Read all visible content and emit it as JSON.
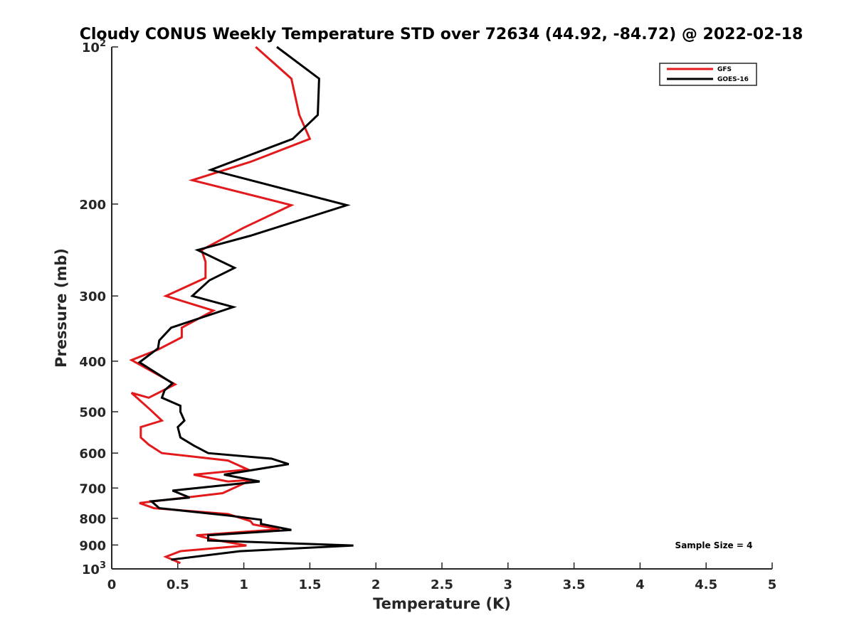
{
  "chart_data": {
    "type": "line",
    "title": "Cloudy CONUS Weekly Temperature STD over 72634 (44.92, -84.72) @ 2022-02-18",
    "xlabel": "Temperature (K)",
    "ylabel": "Pressure (mb)",
    "xlim": [
      0,
      5
    ],
    "ylim": [
      100,
      1000
    ],
    "y_scale": "log",
    "y_reversed": true,
    "grid": false,
    "legend_position": "top-right",
    "x_ticks": [
      0,
      0.5,
      1,
      1.5,
      2,
      2.5,
      3,
      3.5,
      4,
      4.5,
      5
    ],
    "x_tick_labels": [
      "0",
      "0.5",
      "1",
      "1.5",
      "2",
      "2.5",
      "3",
      "3.5",
      "4",
      "4.5",
      "5"
    ],
    "y_ticks": [
      100,
      200,
      300,
      400,
      500,
      600,
      700,
      800,
      900,
      1000
    ],
    "y_tick_labels": [
      {
        "base": "10",
        "exp": "2"
      },
      {
        "base": "200",
        "exp": ""
      },
      {
        "base": "300",
        "exp": ""
      },
      {
        "base": "400",
        "exp": ""
      },
      {
        "base": "500",
        "exp": ""
      },
      {
        "base": "600",
        "exp": ""
      },
      {
        "base": "700",
        "exp": ""
      },
      {
        "base": "800",
        "exp": ""
      },
      {
        "base": "900",
        "exp": ""
      },
      {
        "base": "10",
        "exp": "3"
      }
    ],
    "annotation": "Sample Size = 4",
    "series": [
      {
        "name": "GFS",
        "color": "#e31a1c",
        "points": [
          [
            1.09,
            100
          ],
          [
            1.36,
            115
          ],
          [
            1.42,
            135
          ],
          [
            1.5,
            150
          ],
          [
            1.05,
            166
          ],
          [
            0.61,
            180
          ],
          [
            1.36,
            201
          ],
          [
            1.0,
            222
          ],
          [
            0.68,
            245
          ],
          [
            0.71,
            258
          ],
          [
            0.71,
            277
          ],
          [
            0.41,
            300
          ],
          [
            0.77,
            320
          ],
          [
            0.53,
            345
          ],
          [
            0.53,
            360
          ],
          [
            0.35,
            380
          ],
          [
            0.15,
            398
          ],
          [
            0.48,
            443
          ],
          [
            0.28,
            470
          ],
          [
            0.15,
            460
          ],
          [
            0.29,
            495
          ],
          [
            0.38,
            520
          ],
          [
            0.22,
            535
          ],
          [
            0.22,
            560
          ],
          [
            0.28,
            578
          ],
          [
            0.38,
            600
          ],
          [
            0.88,
            620
          ],
          [
            1.03,
            645
          ],
          [
            0.62,
            660
          ],
          [
            0.88,
            680
          ],
          [
            1.06,
            675
          ],
          [
            0.84,
            716
          ],
          [
            0.21,
            748
          ],
          [
            0.32,
            765
          ],
          [
            0.88,
            785
          ],
          [
            1.05,
            810
          ],
          [
            1.07,
            822
          ],
          [
            1.27,
            840
          ],
          [
            0.64,
            862
          ],
          [
            0.76,
            878
          ],
          [
            1.02,
            902
          ],
          [
            0.52,
            925
          ],
          [
            0.41,
            948
          ],
          [
            0.52,
            975
          ]
        ]
      },
      {
        "name": "GOES-16",
        "color": "#000000",
        "points": [
          [
            1.25,
            100
          ],
          [
            1.57,
            115
          ],
          [
            1.56,
            135
          ],
          [
            1.37,
            150
          ],
          [
            0.75,
            172
          ],
          [
            1.78,
            201
          ],
          [
            1.05,
            230
          ],
          [
            0.65,
            245
          ],
          [
            0.93,
            265
          ],
          [
            0.74,
            280
          ],
          [
            0.61,
            300
          ],
          [
            0.92,
            315
          ],
          [
            0.45,
            345
          ],
          [
            0.36,
            365
          ],
          [
            0.35,
            378
          ],
          [
            0.21,
            402
          ],
          [
            0.46,
            441
          ],
          [
            0.4,
            455
          ],
          [
            0.38,
            470
          ],
          [
            0.52,
            487
          ],
          [
            0.52,
            500
          ],
          [
            0.55,
            520
          ],
          [
            0.5,
            535
          ],
          [
            0.52,
            560
          ],
          [
            0.62,
            580
          ],
          [
            0.73,
            600
          ],
          [
            1.21,
            615
          ],
          [
            1.34,
            630
          ],
          [
            0.85,
            660
          ],
          [
            1.12,
            680
          ],
          [
            0.46,
            708
          ],
          [
            0.59,
            730
          ],
          [
            0.3,
            742
          ],
          [
            0.36,
            765
          ],
          [
            0.88,
            790
          ],
          [
            1.13,
            805
          ],
          [
            1.13,
            820
          ],
          [
            1.36,
            842
          ],
          [
            0.73,
            862
          ],
          [
            0.73,
            882
          ],
          [
            1.83,
            902
          ],
          [
            0.97,
            925
          ],
          [
            0.45,
            960
          ]
        ]
      }
    ]
  }
}
